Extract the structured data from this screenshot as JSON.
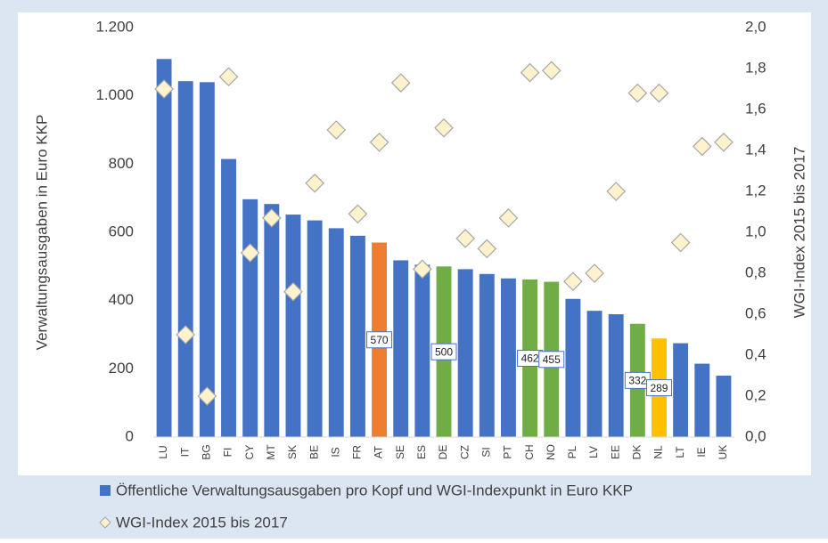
{
  "chart_data": {
    "type": "bar",
    "categories": [
      "LU",
      "IT",
      "BG",
      "FI",
      "CY",
      "MT",
      "SK",
      "BE",
      "IS",
      "FR",
      "AT",
      "SE",
      "ES",
      "DE",
      "CZ",
      "SI",
      "PT",
      "CH",
      "NO",
      "PL",
      "LV",
      "EE",
      "DK",
      "NL",
      "LT",
      "IE",
      "UK"
    ],
    "series": [
      {
        "name": "Öffentliche Verwaltungsausgaben pro Kopf und WGI-Indexpunkt in Euro KKP",
        "color": "#4472c4",
        "colors": [
          "#4472c4",
          "#4472c4",
          "#4472c4",
          "#4472c4",
          "#4472c4",
          "#4472c4",
          "#4472c4",
          "#4472c4",
          "#4472c4",
          "#4472c4",
          "#ed7d31",
          "#4472c4",
          "#4472c4",
          "#70ad47",
          "#4472c4",
          "#4472c4",
          "#4472c4",
          "#70ad47",
          "#70ad47",
          "#4472c4",
          "#4472c4",
          "#4472c4",
          "#70ad47",
          "#ffc000",
          "#4472c4",
          "#4472c4",
          "#4472c4"
        ],
        "show_labels": [
          false,
          false,
          false,
          false,
          false,
          false,
          false,
          false,
          false,
          false,
          true,
          false,
          false,
          true,
          false,
          false,
          false,
          true,
          true,
          false,
          false,
          false,
          true,
          true,
          false,
          false,
          false
        ],
        "values": [
          1108,
          1043,
          1040,
          815,
          697,
          683,
          652,
          635,
          612,
          590,
          570,
          518,
          505,
          500,
          492,
          478,
          465,
          462,
          455,
          405,
          370,
          360,
          332,
          289,
          275,
          215,
          180
        ]
      },
      {
        "name": "WGI-Index 2015 bis 2017",
        "color": "#fff2cc",
        "type": "scatter",
        "axis": "y2",
        "values": [
          1.7,
          0.5,
          0.2,
          1.76,
          0.9,
          1.07,
          0.71,
          1.24,
          1.5,
          1.09,
          1.44,
          1.73,
          0.82,
          1.51,
          0.97,
          0.92,
          1.07,
          1.78,
          1.79,
          0.76,
          0.8,
          1.2,
          1.68,
          1.68,
          0.95,
          1.42,
          1.44
        ]
      }
    ],
    "ylabel": "Verwaltungsausgaben in Euro KKP",
    "y2label": "WGI-Index 2015 bis 2017",
    "ylim": [
      0,
      1200
    ],
    "yticks": [
      0,
      200,
      400,
      600,
      800,
      {
        "value": 1000,
        "label": "1.000"
      },
      {
        "value": 1200,
        "label": "1.200"
      }
    ],
    "y2lim": [
      0,
      2
    ],
    "y2ticks": [
      {
        "value": 0,
        "label": "0,0"
      },
      {
        "value": 0.2,
        "label": "0,2"
      },
      {
        "value": 0.4,
        "label": "0,4"
      },
      {
        "value": 0.6,
        "label": "0,6"
      },
      {
        "value": 0.8,
        "label": "0,8"
      },
      {
        "value": 1.0,
        "label": "1,0"
      },
      {
        "value": 1.2,
        "label": "1,2"
      },
      {
        "value": 1.4,
        "label": "1,4"
      },
      {
        "value": 1.6,
        "label": "1,6"
      },
      {
        "value": 1.8,
        "label": "1,8"
      },
      {
        "value": 2.0,
        "label": "2,0"
      }
    ],
    "legend": "bottom"
  }
}
